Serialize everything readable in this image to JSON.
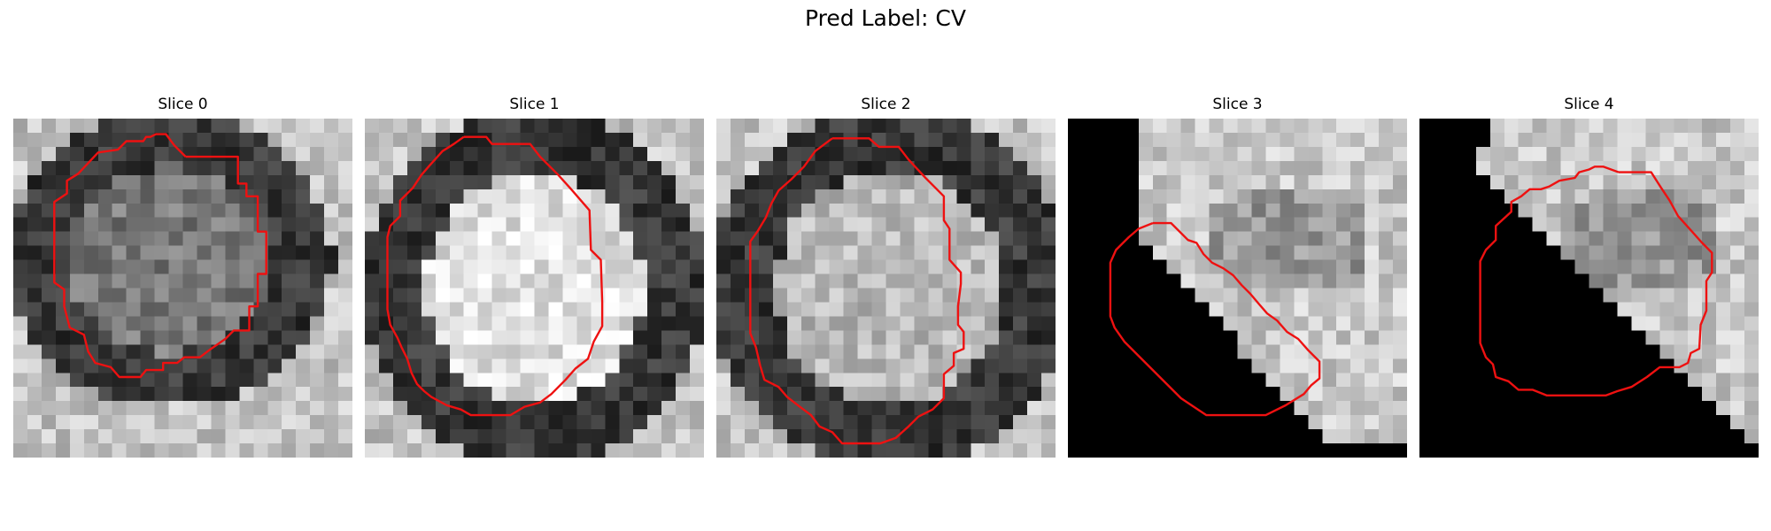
{
  "figure": {
    "title": "Pred Label: CV"
  },
  "colors": {
    "contour": "#ee1111",
    "background": "#ffffff"
  },
  "slices": [
    {
      "title": "Slice 0",
      "appearance": "dark-ring-around-gray-core",
      "contour": [
        [
          12.2,
          2.7
        ],
        [
          15.9,
          2.7
        ],
        [
          15.9,
          4.6
        ],
        [
          16.5,
          4.6
        ],
        [
          16.5,
          5.5
        ],
        [
          17.3,
          5.5
        ],
        [
          17.3,
          8.0
        ],
        [
          17.9,
          8.0
        ],
        [
          17.9,
          11.0
        ],
        [
          17.3,
          11.0
        ],
        [
          17.3,
          13.3
        ],
        [
          16.7,
          13.3
        ],
        [
          16.7,
          15.0
        ],
        [
          15.6,
          15.0
        ],
        [
          15.0,
          15.6
        ],
        [
          14.0,
          16.3
        ],
        [
          13.2,
          16.9
        ],
        [
          12.1,
          16.9
        ],
        [
          11.6,
          17.3
        ],
        [
          10.6,
          17.3
        ],
        [
          10.6,
          17.8
        ],
        [
          9.4,
          17.8
        ],
        [
          9.0,
          18.3
        ],
        [
          7.5,
          18.3
        ],
        [
          6.9,
          17.6
        ],
        [
          5.8,
          17.3
        ],
        [
          5.3,
          16.5
        ],
        [
          5.0,
          15.3
        ],
        [
          4.0,
          14.8
        ],
        [
          3.6,
          13.3
        ],
        [
          3.6,
          12.1
        ],
        [
          2.9,
          11.6
        ],
        [
          2.9,
          5.9
        ],
        [
          3.8,
          5.3
        ],
        [
          3.8,
          4.4
        ],
        [
          4.6,
          3.9
        ],
        [
          6.0,
          2.4
        ],
        [
          7.4,
          2.2
        ],
        [
          8.0,
          1.6
        ],
        [
          9.2,
          1.6
        ],
        [
          9.4,
          1.3
        ],
        [
          9.7,
          1.3
        ],
        [
          10.1,
          1.1
        ],
        [
          10.8,
          1.1
        ],
        [
          11.4,
          1.9
        ],
        [
          12.2,
          2.7
        ]
      ]
    },
    {
      "title": "Slice 1",
      "appearance": "dark-ring-around-bright-core",
      "contour": [
        [
          7.0,
          1.3
        ],
        [
          8.6,
          1.3
        ],
        [
          9.0,
          1.8
        ],
        [
          11.7,
          1.8
        ],
        [
          12.4,
          2.7
        ],
        [
          13.7,
          4.0
        ],
        [
          14.6,
          5.0
        ],
        [
          15.9,
          6.5
        ],
        [
          16.0,
          9.3
        ],
        [
          16.7,
          10.0
        ],
        [
          16.8,
          13.0
        ],
        [
          16.8,
          14.7
        ],
        [
          16.2,
          15.8
        ],
        [
          15.8,
          17.0
        ],
        [
          14.9,
          17.7
        ],
        [
          14.2,
          18.5
        ],
        [
          13.2,
          19.5
        ],
        [
          12.4,
          20.1
        ],
        [
          11.3,
          20.4
        ],
        [
          10.3,
          21.0
        ],
        [
          8.6,
          21.0
        ],
        [
          7.5,
          21.0
        ],
        [
          6.8,
          20.6
        ],
        [
          5.8,
          20.3
        ],
        [
          4.7,
          19.7
        ],
        [
          4.2,
          19.3
        ],
        [
          3.7,
          18.8
        ],
        [
          3.3,
          18.0
        ],
        [
          3.0,
          17.0
        ],
        [
          2.6,
          16.2
        ],
        [
          2.3,
          15.5
        ],
        [
          1.8,
          14.6
        ],
        [
          1.6,
          13.5
        ],
        [
          1.6,
          12.4
        ],
        [
          1.6,
          8.4
        ],
        [
          1.8,
          7.6
        ],
        [
          2.5,
          6.9
        ],
        [
          2.5,
          5.8
        ],
        [
          3.4,
          4.9
        ],
        [
          4.0,
          4.0
        ],
        [
          4.6,
          3.3
        ],
        [
          5.5,
          2.3
        ],
        [
          6.3,
          1.8
        ],
        [
          7.0,
          1.3
        ]
      ]
    },
    {
      "title": "Slice 2",
      "appearance": "dark-ring-around-gray-core",
      "contour": [
        [
          8.2,
          1.4
        ],
        [
          10.8,
          1.4
        ],
        [
          11.5,
          2.0
        ],
        [
          12.9,
          2.0
        ],
        [
          13.6,
          2.9
        ],
        [
          14.8,
          4.2
        ],
        [
          16.1,
          5.5
        ],
        [
          16.1,
          7.2
        ],
        [
          16.5,
          7.8
        ],
        [
          16.5,
          10.0
        ],
        [
          17.3,
          10.9
        ],
        [
          17.3,
          11.7
        ],
        [
          17.1,
          13.3
        ],
        [
          17.1,
          14.6
        ],
        [
          17.5,
          15.1
        ],
        [
          17.5,
          16.3
        ],
        [
          16.8,
          16.6
        ],
        [
          16.8,
          17.5
        ],
        [
          16.1,
          18.1
        ],
        [
          16.1,
          19.8
        ],
        [
          15.3,
          20.6
        ],
        [
          14.3,
          21.1
        ],
        [
          13.6,
          21.8
        ],
        [
          12.7,
          22.6
        ],
        [
          11.6,
          23.0
        ],
        [
          10.4,
          23.0
        ],
        [
          8.9,
          23.0
        ],
        [
          8.2,
          22.2
        ],
        [
          7.3,
          21.8
        ],
        [
          6.7,
          21.0
        ],
        [
          5.9,
          20.4
        ],
        [
          5.0,
          19.7
        ],
        [
          4.4,
          19.0
        ],
        [
          3.4,
          18.5
        ],
        [
          3.1,
          17.5
        ],
        [
          2.8,
          16.2
        ],
        [
          2.4,
          15.2
        ],
        [
          2.4,
          12.9
        ],
        [
          2.4,
          8.7
        ],
        [
          2.9,
          8.0
        ],
        [
          3.5,
          7.0
        ],
        [
          3.9,
          6.0
        ],
        [
          4.4,
          5.1
        ],
        [
          5.3,
          4.3
        ],
        [
          6.2,
          3.4
        ],
        [
          7.0,
          2.3
        ],
        [
          8.2,
          1.4
        ]
      ]
    },
    {
      "title": "Slice 3",
      "appearance": "black-occluded-lower-left",
      "contour": [
        [
          6.0,
          7.4
        ],
        [
          7.3,
          7.4
        ],
        [
          8.5,
          8.6
        ],
        [
          9.1,
          8.8
        ],
        [
          9.6,
          9.6
        ],
        [
          10.2,
          10.2
        ],
        [
          11.0,
          10.6
        ],
        [
          11.7,
          11.1
        ],
        [
          12.3,
          11.8
        ],
        [
          12.9,
          12.4
        ],
        [
          13.5,
          13.1
        ],
        [
          14.1,
          13.8
        ],
        [
          14.8,
          14.3
        ],
        [
          15.5,
          15.1
        ],
        [
          16.3,
          15.6
        ],
        [
          17.0,
          16.4
        ],
        [
          17.8,
          17.2
        ],
        [
          17.8,
          18.4
        ],
        [
          17.2,
          18.9
        ],
        [
          16.7,
          19.5
        ],
        [
          15.4,
          20.3
        ],
        [
          14.0,
          21.0
        ],
        [
          12.3,
          21.0
        ],
        [
          9.8,
          21.0
        ],
        [
          9.2,
          20.6
        ],
        [
          8.0,
          19.8
        ],
        [
          7.0,
          18.8
        ],
        [
          6.0,
          17.8
        ],
        [
          5.0,
          16.8
        ],
        [
          4.0,
          15.8
        ],
        [
          3.3,
          14.8
        ],
        [
          3.0,
          14.0
        ],
        [
          3.0,
          10.2
        ],
        [
          3.4,
          9.3
        ],
        [
          4.3,
          8.4
        ],
        [
          5.0,
          7.8
        ],
        [
          6.0,
          7.4
        ]
      ]
    },
    {
      "title": "Slice 4",
      "appearance": "black-occluded-lower-left",
      "contour": [
        [
          14.1,
          3.8
        ],
        [
          16.4,
          3.8
        ],
        [
          17.1,
          4.9
        ],
        [
          17.7,
          5.8
        ],
        [
          18.3,
          6.9
        ],
        [
          19.2,
          7.9
        ],
        [
          20.0,
          8.8
        ],
        [
          20.7,
          9.5
        ],
        [
          20.7,
          10.9
        ],
        [
          20.3,
          11.5
        ],
        [
          20.3,
          13.6
        ],
        [
          19.9,
          14.6
        ],
        [
          19.8,
          16.3
        ],
        [
          19.2,
          16.6
        ],
        [
          19.0,
          17.3
        ],
        [
          18.4,
          17.6
        ],
        [
          17.0,
          17.6
        ],
        [
          16.1,
          18.3
        ],
        [
          15.0,
          19.0
        ],
        [
          14.0,
          19.3
        ],
        [
          13.2,
          19.6
        ],
        [
          11.6,
          19.6
        ],
        [
          9.0,
          19.6
        ],
        [
          8.0,
          19.2
        ],
        [
          7.0,
          19.2
        ],
        [
          6.3,
          18.6
        ],
        [
          5.4,
          18.3
        ],
        [
          5.2,
          17.4
        ],
        [
          4.7,
          16.9
        ],
        [
          4.3,
          15.9
        ],
        [
          4.3,
          14.9
        ],
        [
          4.3,
          10.1
        ],
        [
          4.7,
          9.3
        ],
        [
          5.4,
          8.6
        ],
        [
          5.4,
          7.6
        ],
        [
          6.5,
          6.6
        ],
        [
          6.5,
          5.9
        ],
        [
          7.2,
          5.5
        ],
        [
          7.8,
          5.0
        ],
        [
          8.6,
          5.0
        ],
        [
          9.2,
          4.8
        ],
        [
          9.9,
          4.4
        ],
        [
          11.0,
          4.2
        ],
        [
          11.3,
          3.8
        ],
        [
          12.0,
          3.6
        ],
        [
          12.4,
          3.4
        ],
        [
          13.0,
          3.4
        ],
        [
          14.1,
          3.8
        ]
      ]
    }
  ]
}
